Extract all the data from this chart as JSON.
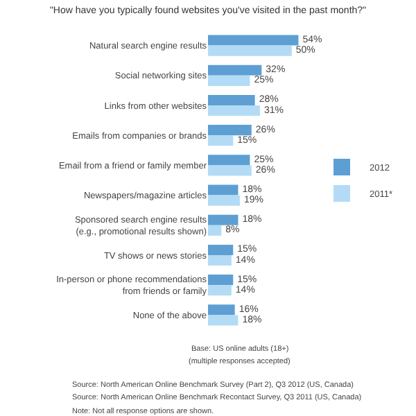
{
  "chart_data": {
    "type": "bar",
    "orientation": "horizontal",
    "title": "\"How have you typically found websites you've visited in the past month?\"",
    "categories": [
      "Natural search engine results",
      "Social networking sites",
      "Links from other websites",
      "Emails from companies or brands",
      "Email from a friend or family member",
      "Newspapers/magazine articles",
      "Sponsored search engine results (e.g., promotional results shown)",
      "TV shows or news stories",
      "In-person or phone recommendations from friends or family",
      "None of the above"
    ],
    "series": [
      {
        "name": "2012",
        "color": "#5d9fd3",
        "values": [
          54,
          32,
          28,
          26,
          25,
          18,
          18,
          15,
          15,
          16
        ],
        "value_labels": [
          "54%",
          "32%",
          "28%",
          "26%",
          "25%",
          "18%",
          "18%",
          "15%",
          "15%",
          "16%"
        ]
      },
      {
        "name": "2011*",
        "color": "#b3dbf5",
        "values": [
          50,
          25,
          31,
          15,
          26,
          19,
          8,
          14,
          14,
          18
        ],
        "value_labels": [
          "50%",
          "25%",
          "31%",
          "15%",
          "26%",
          "19%",
          "8%",
          "14%",
          "14%",
          "18%"
        ]
      }
    ],
    "legend": "right",
    "grid": false,
    "annotations": [
      "Base: US online adults (18+)",
      "(multiple responses accepted)",
      "Source: North American Online Benchmark Survey (Part 2), Q3 2012 (US, Canada)",
      "Source: North American Online Benchmark Recontact Survey, Q3 2011 (US, Canada)",
      "Note: Not all response options are shown."
    ]
  }
}
